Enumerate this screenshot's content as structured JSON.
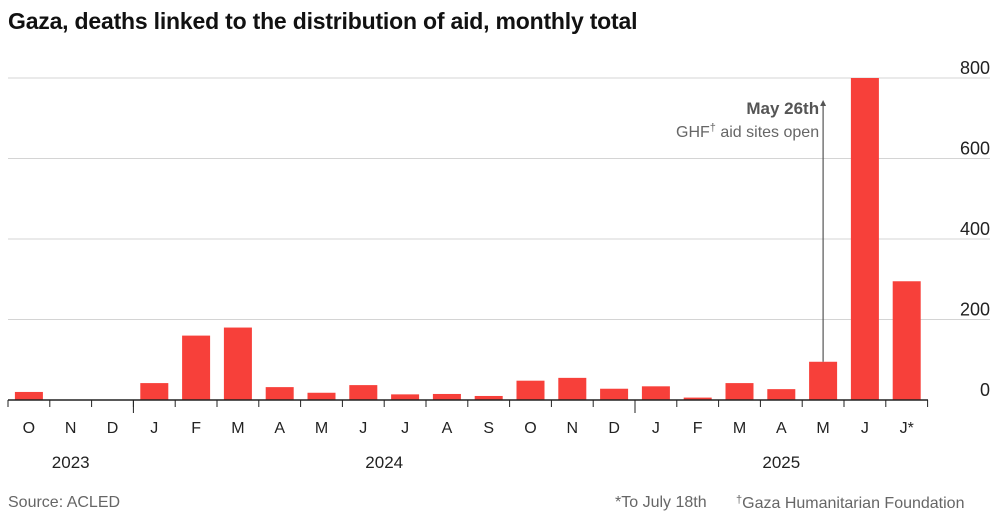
{
  "title": "Gaza, deaths linked to the distribution of aid, monthly total",
  "chart_data": {
    "type": "bar",
    "title": "Gaza, deaths linked to the distribution of aid, monthly total",
    "categories": [
      "O",
      "N",
      "D",
      "J",
      "F",
      "M",
      "A",
      "M",
      "J",
      "J",
      "A",
      "S",
      "O",
      "N",
      "D",
      "J",
      "F",
      "M",
      "A",
      "M",
      "J",
      "J*"
    ],
    "values": [
      20,
      0,
      0,
      42,
      160,
      180,
      32,
      18,
      37,
      14,
      15,
      10,
      48,
      55,
      28,
      34,
      6,
      42,
      27,
      95,
      800,
      295
    ],
    "years": [
      {
        "label": "2023",
        "start": 0,
        "end": 2
      },
      {
        "label": "2024",
        "start": 3,
        "end": 14
      },
      {
        "label": "2025",
        "start": 15,
        "end": 21
      }
    ],
    "y_ticks": [
      0,
      200,
      400,
      600,
      800
    ],
    "ylim": [
      0,
      800
    ],
    "bar_color": "#f7403a",
    "annotation": {
      "date": "May 26th",
      "text": "GHF",
      "dagger": "†",
      "text_after": " aid sites open",
      "category_index": 19
    },
    "xlabel": "",
    "ylabel": ""
  },
  "footer": {
    "source": "Source: ACLED",
    "note1": "*To July 18th",
    "dagger": "†",
    "note2": "Gaza Humanitarian Foundation"
  }
}
